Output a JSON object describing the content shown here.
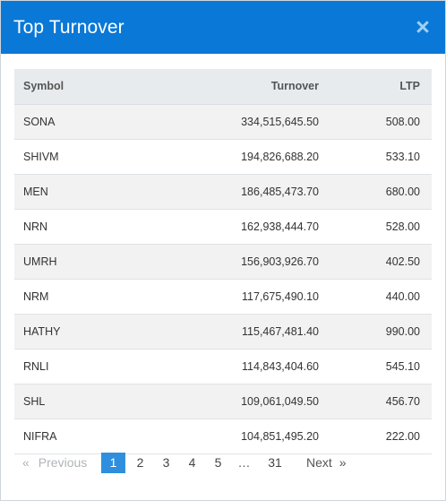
{
  "modal": {
    "title": "Top Turnover",
    "close_symbol": "×"
  },
  "table": {
    "headers": {
      "symbol": "Symbol",
      "turnover": "Turnover",
      "ltp": "LTP"
    },
    "rows": [
      {
        "symbol": "SONA",
        "turnover": "334,515,645.50",
        "ltp": "508.00"
      },
      {
        "symbol": "SHIVM",
        "turnover": "194,826,688.20",
        "ltp": "533.10"
      },
      {
        "symbol": "MEN",
        "turnover": "186,485,473.70",
        "ltp": "680.00"
      },
      {
        "symbol": "NRN",
        "turnover": "162,938,444.70",
        "ltp": "528.00"
      },
      {
        "symbol": "UMRH",
        "turnover": "156,903,926.70",
        "ltp": "402.50"
      },
      {
        "symbol": "NRM",
        "turnover": "117,675,490.10",
        "ltp": "440.00"
      },
      {
        "symbol": "HATHY",
        "turnover": "115,467,481.40",
        "ltp": "990.00"
      },
      {
        "symbol": "RNLI",
        "turnover": "114,843,404.60",
        "ltp": "545.10"
      },
      {
        "symbol": "SHL",
        "turnover": "109,061,049.50",
        "ltp": "456.70"
      },
      {
        "symbol": "NIFRA",
        "turnover": "104,851,495.20",
        "ltp": "222.00"
      }
    ]
  },
  "pagination": {
    "prev_arrow": "«",
    "prev_label": "Previous",
    "pages": [
      "1",
      "2",
      "3",
      "4",
      "5"
    ],
    "ellipsis": "…",
    "last_page": "31",
    "next_label": "Next",
    "next_arrow": "»",
    "active_page": "1"
  },
  "colors": {
    "header_bg": "#0a78d7",
    "active_page_bg": "#2f8fde"
  }
}
